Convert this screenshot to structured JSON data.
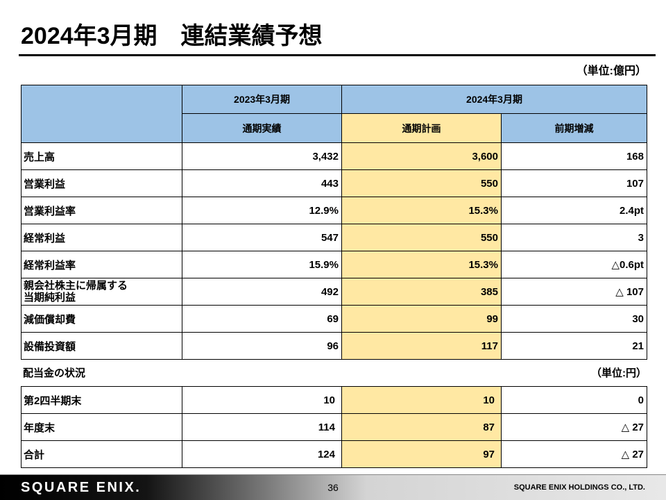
{
  "title": "2024年3月期　連結業績予想",
  "unit_note": "（単位:億円）",
  "colors": {
    "header_blue": "#9DC3E6",
    "plan_highlight": "#FFE8A3"
  },
  "results_table": {
    "header": {
      "prev_period": "2023年3月期",
      "current_period": "2024年3月期",
      "actual": "通期実績",
      "plan": "通期計画",
      "change": "前期増減"
    },
    "rows": [
      {
        "label": "売上高",
        "actual": "3,432",
        "plan": "3,600",
        "change": "168"
      },
      {
        "label": "営業利益",
        "actual": "443",
        "plan": "550",
        "change": "107"
      },
      {
        "label": "営業利益率",
        "actual": "12.9%",
        "plan": "15.3%",
        "change": "2.4pt"
      },
      {
        "label": "経常利益",
        "actual": "547",
        "plan": "550",
        "change": "3"
      },
      {
        "label": "経常利益率",
        "actual": "15.9%",
        "plan": "15.3%",
        "change": "△0.6pt"
      },
      {
        "label": "親会社株主に帰属する\n当期純利益",
        "actual": "492",
        "plan": "385",
        "change": "△ 107"
      },
      {
        "label": "減価償却費",
        "actual": "69",
        "plan": "99",
        "change": "30"
      },
      {
        "label": "設備投資額",
        "actual": "96",
        "plan": "117",
        "change": "21"
      }
    ]
  },
  "dividend": {
    "section_label": "配当金の状況",
    "unit_note": "（単位:円）",
    "rows": [
      {
        "label": "第2四半期末",
        "actual": "10",
        "plan": "10",
        "change": "0"
      },
      {
        "label": "年度末",
        "actual": "114",
        "plan": "87",
        "change": "△ 27"
      },
      {
        "label": "合計",
        "actual": "124",
        "plan": "97",
        "change": "△ 27"
      }
    ]
  },
  "footer": {
    "logo_text": "SQUARE ENIX.",
    "page_number": "36",
    "company": "SQUARE ENIX HOLDINGS CO., LTD."
  }
}
